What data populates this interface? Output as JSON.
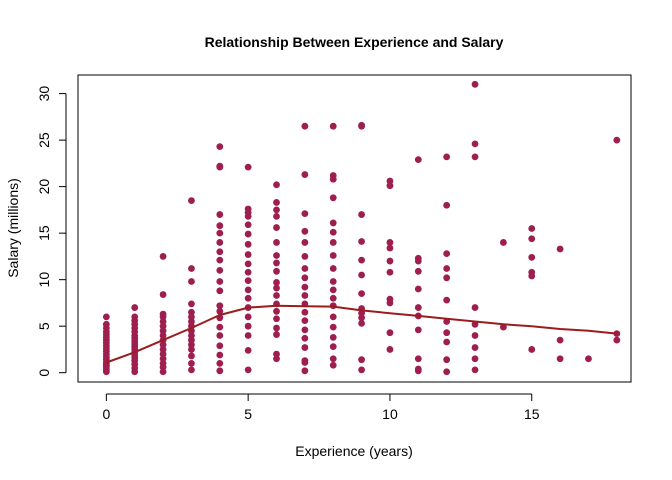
{
  "chart_data": {
    "type": "scatter",
    "title": "Relationship Between Experience and Salary",
    "xlabel": "Experience (years)",
    "ylabel": "Salary (millions)",
    "xlim": [
      -1,
      18.5
    ],
    "ylim": [
      -1,
      32
    ],
    "x_ticks": [
      0,
      5,
      10,
      15
    ],
    "y_ticks": [
      0,
      5,
      10,
      15,
      20,
      25,
      30
    ],
    "grid": false,
    "legend": "none",
    "colors": {
      "points": "#9e1f4f",
      "trend": "#9b1c1f"
    },
    "series": [
      {
        "kind": "points",
        "points": [
          [
            0,
            0.1
          ],
          [
            0,
            0.3
          ],
          [
            0,
            0.5
          ],
          [
            0,
            0.7
          ],
          [
            0,
            0.9
          ],
          [
            0,
            1.1
          ],
          [
            0,
            1.4
          ],
          [
            0,
            1.7
          ],
          [
            0,
            2.0
          ],
          [
            0,
            2.3
          ],
          [
            0,
            2.6
          ],
          [
            0,
            2.9
          ],
          [
            0,
            3.2
          ],
          [
            0,
            3.5
          ],
          [
            0,
            3.8
          ],
          [
            0,
            4.1
          ],
          [
            0,
            4.4
          ],
          [
            0,
            4.8
          ],
          [
            0,
            5.2
          ],
          [
            0,
            6.0
          ],
          [
            1,
            0.1
          ],
          [
            1,
            0.5
          ],
          [
            1,
            0.9
          ],
          [
            1,
            1.3
          ],
          [
            1,
            1.6
          ],
          [
            1,
            1.9
          ],
          [
            1,
            2.2
          ],
          [
            1,
            2.5
          ],
          [
            1,
            2.8
          ],
          [
            1,
            3.1
          ],
          [
            1,
            3.4
          ],
          [
            1,
            3.7
          ],
          [
            1,
            4.0
          ],
          [
            1,
            4.4
          ],
          [
            1,
            4.8
          ],
          [
            1,
            5.2
          ],
          [
            1,
            5.6
          ],
          [
            1,
            6.0
          ],
          [
            1,
            7.0
          ],
          [
            2,
            0.1
          ],
          [
            2,
            0.6
          ],
          [
            2,
            1.0
          ],
          [
            2,
            1.5
          ],
          [
            2,
            2.0
          ],
          [
            2,
            2.5
          ],
          [
            2,
            3.0
          ],
          [
            2,
            3.5
          ],
          [
            2,
            4.0
          ],
          [
            2,
            4.5
          ],
          [
            2,
            5.0
          ],
          [
            2,
            5.5
          ],
          [
            2,
            6.0
          ],
          [
            2,
            6.3
          ],
          [
            2,
            8.4
          ],
          [
            2,
            12.5
          ],
          [
            3,
            0.3
          ],
          [
            3,
            1.0
          ],
          [
            3,
            1.8
          ],
          [
            3,
            2.5
          ],
          [
            3,
            3.0
          ],
          [
            3,
            3.5
          ],
          [
            3,
            4.0
          ],
          [
            3,
            4.5
          ],
          [
            3,
            5.0
          ],
          [
            3,
            5.5
          ],
          [
            3,
            6.0
          ],
          [
            3,
            6.5
          ],
          [
            3,
            7.4
          ],
          [
            3,
            9.8
          ],
          [
            3,
            11.2
          ],
          [
            3,
            18.5
          ],
          [
            4,
            0.2
          ],
          [
            4,
            1.0
          ],
          [
            4,
            1.9
          ],
          [
            4,
            2.9
          ],
          [
            4,
            4.0
          ],
          [
            4,
            4.9
          ],
          [
            4,
            5.9
          ],
          [
            4,
            6.6
          ],
          [
            4,
            7.2
          ],
          [
            4,
            8.8
          ],
          [
            4,
            9.8
          ],
          [
            4,
            11.0
          ],
          [
            4,
            12.1
          ],
          [
            4,
            13.0
          ],
          [
            4,
            14.0
          ],
          [
            4,
            15.0
          ],
          [
            4,
            15.8
          ],
          [
            4,
            17.0
          ],
          [
            4,
            22.1
          ],
          [
            4,
            22.2
          ],
          [
            4,
            24.3
          ],
          [
            5,
            0.3
          ],
          [
            5,
            2.4
          ],
          [
            5,
            4.0
          ],
          [
            5,
            5.0
          ],
          [
            5,
            6.0
          ],
          [
            5,
            7.0
          ],
          [
            5,
            8.0
          ],
          [
            5,
            8.9
          ],
          [
            5,
            9.9
          ],
          [
            5,
            10.8
          ],
          [
            5,
            11.7
          ],
          [
            5,
            12.7
          ],
          [
            5,
            13.8
          ],
          [
            5,
            14.9
          ],
          [
            5,
            15.9
          ],
          [
            5,
            16.8
          ],
          [
            5,
            17.2
          ],
          [
            5,
            17.6
          ],
          [
            5,
            22.1
          ],
          [
            6,
            1.5
          ],
          [
            6,
            2.0
          ],
          [
            6,
            4.1
          ],
          [
            6,
            4.8
          ],
          [
            6,
            5.8
          ],
          [
            6,
            6.6
          ],
          [
            6,
            7.4
          ],
          [
            6,
            8.3
          ],
          [
            6,
            9.1
          ],
          [
            6,
            9.7
          ],
          [
            6,
            10.9
          ],
          [
            6,
            11.8
          ],
          [
            6,
            12.6
          ],
          [
            6,
            14.0
          ],
          [
            6,
            15.6
          ],
          [
            6,
            16.8
          ],
          [
            6,
            17.5
          ],
          [
            6,
            18.3
          ],
          [
            6,
            20.2
          ],
          [
            7,
            0.2
          ],
          [
            7,
            1.1
          ],
          [
            7,
            1.3
          ],
          [
            7,
            2.7
          ],
          [
            7,
            3.7
          ],
          [
            7,
            4.6
          ],
          [
            7,
            5.6
          ],
          [
            7,
            6.5
          ],
          [
            7,
            7.4
          ],
          [
            7,
            8.3
          ],
          [
            7,
            9.2
          ],
          [
            7,
            10.2
          ],
          [
            7,
            11.2
          ],
          [
            7,
            12.5
          ],
          [
            7,
            14.0
          ],
          [
            7,
            15.2
          ],
          [
            7,
            17.1
          ],
          [
            7,
            21.3
          ],
          [
            7,
            26.5
          ],
          [
            8,
            0.8
          ],
          [
            8,
            1.5
          ],
          [
            8,
            2.8
          ],
          [
            8,
            3.8
          ],
          [
            8,
            4.9
          ],
          [
            8,
            6.0
          ],
          [
            8,
            7.2
          ],
          [
            8,
            8.0
          ],
          [
            8,
            8.9
          ],
          [
            8,
            9.8
          ],
          [
            8,
            11.2
          ],
          [
            8,
            12.6
          ],
          [
            8,
            14.0
          ],
          [
            8,
            15.1
          ],
          [
            8,
            16.1
          ],
          [
            8,
            18.8
          ],
          [
            8,
            20.8
          ],
          [
            8,
            21.2
          ],
          [
            8,
            26.5
          ],
          [
            9,
            0.3
          ],
          [
            9,
            1.4
          ],
          [
            9,
            5.3
          ],
          [
            9,
            5.9
          ],
          [
            9,
            6.4
          ],
          [
            9,
            6.9
          ],
          [
            9,
            8.5
          ],
          [
            9,
            10.5
          ],
          [
            9,
            12.1
          ],
          [
            9,
            14.1
          ],
          [
            9,
            17.0
          ],
          [
            9,
            26.5
          ],
          [
            9,
            26.6
          ],
          [
            10,
            2.5
          ],
          [
            10,
            4.3
          ],
          [
            10,
            7.5
          ],
          [
            10,
            7.9
          ],
          [
            10,
            10.8
          ],
          [
            10,
            12.0
          ],
          [
            10,
            13.4
          ],
          [
            10,
            14.0
          ],
          [
            10,
            20.1
          ],
          [
            10,
            20.6
          ],
          [
            11,
            0.2
          ],
          [
            11,
            0.4
          ],
          [
            11,
            1.5
          ],
          [
            11,
            4.6
          ],
          [
            11,
            6.1
          ],
          [
            11,
            7.0
          ],
          [
            11,
            9.0
          ],
          [
            11,
            10.9
          ],
          [
            11,
            12.0
          ],
          [
            11,
            12.3
          ],
          [
            11,
            22.9
          ],
          [
            12,
            0.1
          ],
          [
            12,
            1.4
          ],
          [
            12,
            3.3
          ],
          [
            12,
            4.3
          ],
          [
            12,
            5.5
          ],
          [
            12,
            7.8
          ],
          [
            12,
            10.2
          ],
          [
            12,
            11.2
          ],
          [
            12,
            12.8
          ],
          [
            12,
            18.0
          ],
          [
            12,
            23.2
          ],
          [
            13,
            0.3
          ],
          [
            13,
            1.5
          ],
          [
            13,
            2.7
          ],
          [
            13,
            4.0
          ],
          [
            13,
            5.2
          ],
          [
            13,
            7.0
          ],
          [
            13,
            23.2
          ],
          [
            13,
            24.6
          ],
          [
            13,
            31.0
          ],
          [
            14,
            4.9
          ],
          [
            14,
            14.0
          ],
          [
            15,
            2.5
          ],
          [
            15,
            10.4
          ],
          [
            15,
            10.8
          ],
          [
            15,
            12.4
          ],
          [
            15,
            14.4
          ],
          [
            15,
            15.5
          ],
          [
            16,
            1.5
          ],
          [
            16,
            3.5
          ],
          [
            16,
            13.3
          ],
          [
            17,
            1.5
          ],
          [
            18,
            3.5
          ],
          [
            18,
            4.2
          ],
          [
            18,
            25.0
          ]
        ]
      },
      {
        "kind": "trend-line",
        "points": [
          [
            0,
            1.1
          ],
          [
            1,
            2.2
          ],
          [
            2,
            3.5
          ],
          [
            3,
            4.8
          ],
          [
            4,
            6.2
          ],
          [
            5,
            7.0
          ],
          [
            6,
            7.2
          ],
          [
            7,
            7.15
          ],
          [
            8,
            7.1
          ],
          [
            9,
            6.7
          ],
          [
            10,
            6.4
          ],
          [
            11,
            6.1
          ],
          [
            12,
            5.8
          ],
          [
            13,
            5.5
          ],
          [
            14,
            5.2
          ],
          [
            15,
            5.0
          ],
          [
            16,
            4.7
          ],
          [
            17,
            4.5
          ],
          [
            18,
            4.2
          ]
        ]
      }
    ]
  }
}
